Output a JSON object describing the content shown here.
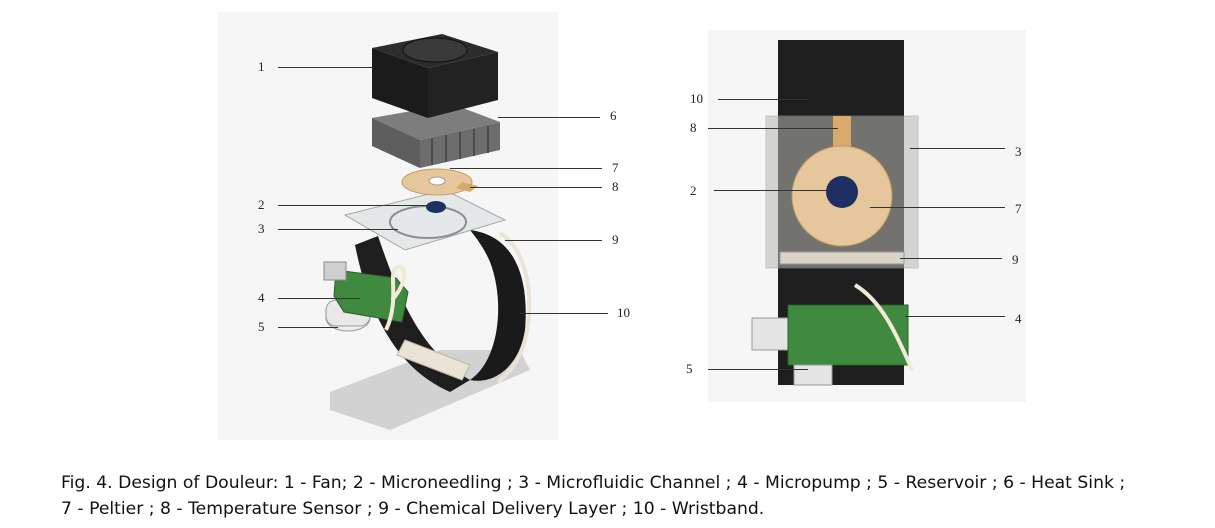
{
  "left_view": {
    "labels": [
      "1",
      "6",
      "7",
      "8",
      "2",
      "3",
      "9",
      "4",
      "5",
      "10"
    ]
  },
  "right_view": {
    "labels": [
      "10",
      "8",
      "3",
      "2",
      "7",
      "9",
      "4",
      "5"
    ]
  },
  "caption": {
    "line1": "Fig. 4.  Design of Douleur: 1 - Fan; 2 - Microneedling ; 3 - Microfluidic Channel ; 4 - Micropump ; 5 - Reservoir ; 6 - Heat Sink ;",
    "line2": "7 - Peltier ; 8 - Temperature Sensor ; 9 - Chemical Delivery Layer ; 10 - Wristband."
  },
  "colors": {
    "band": "#1e1e1e",
    "heatsink": "#6d6d6d",
    "peltier": "#e6c79c",
    "pump": "#3f8a3e",
    "wire": "#f1ead8",
    "glass": "#d9dcdd",
    "needle": "#1d2f63",
    "sensor": "#d8a96a"
  }
}
